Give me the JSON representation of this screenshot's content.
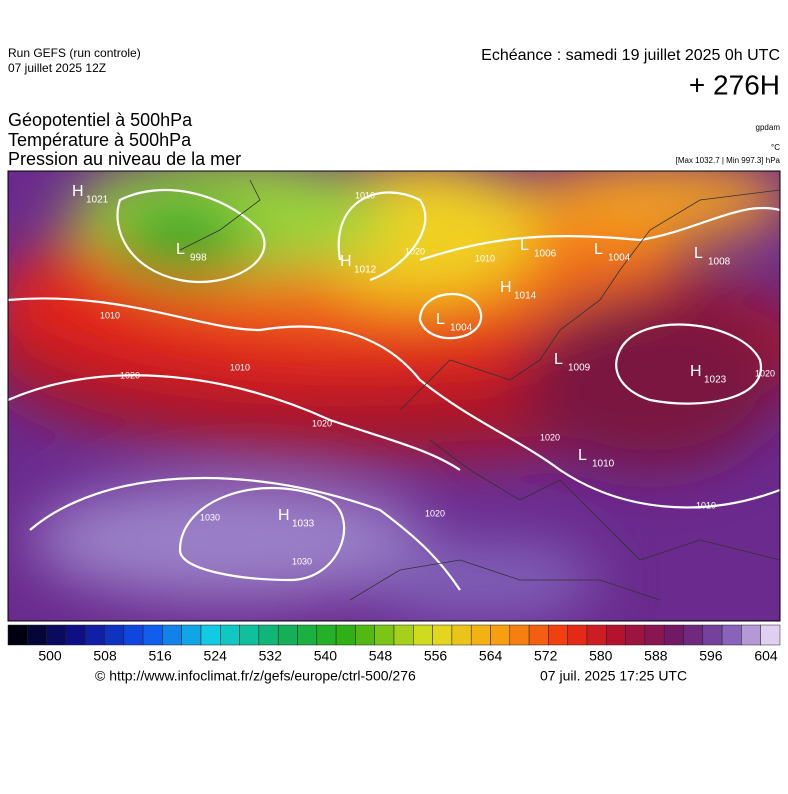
{
  "header": {
    "run": "Run GEFS (run controle)",
    "run_date": "07 juillet 2025 12Z",
    "echeance": "Echéance : samedi 19 juillet 2025 0h UTC",
    "lead": "+ 276H",
    "fields": [
      "Géopotentiel à 500hPa",
      "Température à 500hPa",
      "Pression au niveau de la mer"
    ],
    "unit_geo": "gpdam",
    "unit_temp": "°C",
    "pressure_range": "[Max 1032.7 | Min 997.3] hPa"
  },
  "map": {
    "centers": [
      {
        "letter": "H",
        "value": "1021"
      },
      {
        "letter": "L",
        "value": "998"
      },
      {
        "letter": "H",
        "value": "1012"
      },
      {
        "letter": "L",
        "value": "1004"
      },
      {
        "letter": "H",
        "value": "1014"
      },
      {
        "letter": "L",
        "value": "1006"
      },
      {
        "letter": "L",
        "value": "1004"
      },
      {
        "letter": "L",
        "value": "1008"
      },
      {
        "letter": "L",
        "value": "1009"
      },
      {
        "letter": "H",
        "value": "1023"
      },
      {
        "letter": "L",
        "value": "1010"
      },
      {
        "letter": "H",
        "value": "1033"
      }
    ],
    "isobar_labels": [
      "1010",
      "1010",
      "1010",
      "1020",
      "1020",
      "1010",
      "1020",
      "1020",
      "1030",
      "1030",
      "1020",
      "1010",
      "1020"
    ]
  },
  "colorbar": {
    "ticks": [
      500,
      508,
      516,
      524,
      532,
      540,
      548,
      556,
      564,
      572,
      580,
      588,
      596,
      604
    ]
  },
  "footer": {
    "url": "© http://www.infoclimat.fr/z/gefs/europe/ctrl-500/276",
    "issued": "07 juil. 2025 17:25 UTC"
  }
}
